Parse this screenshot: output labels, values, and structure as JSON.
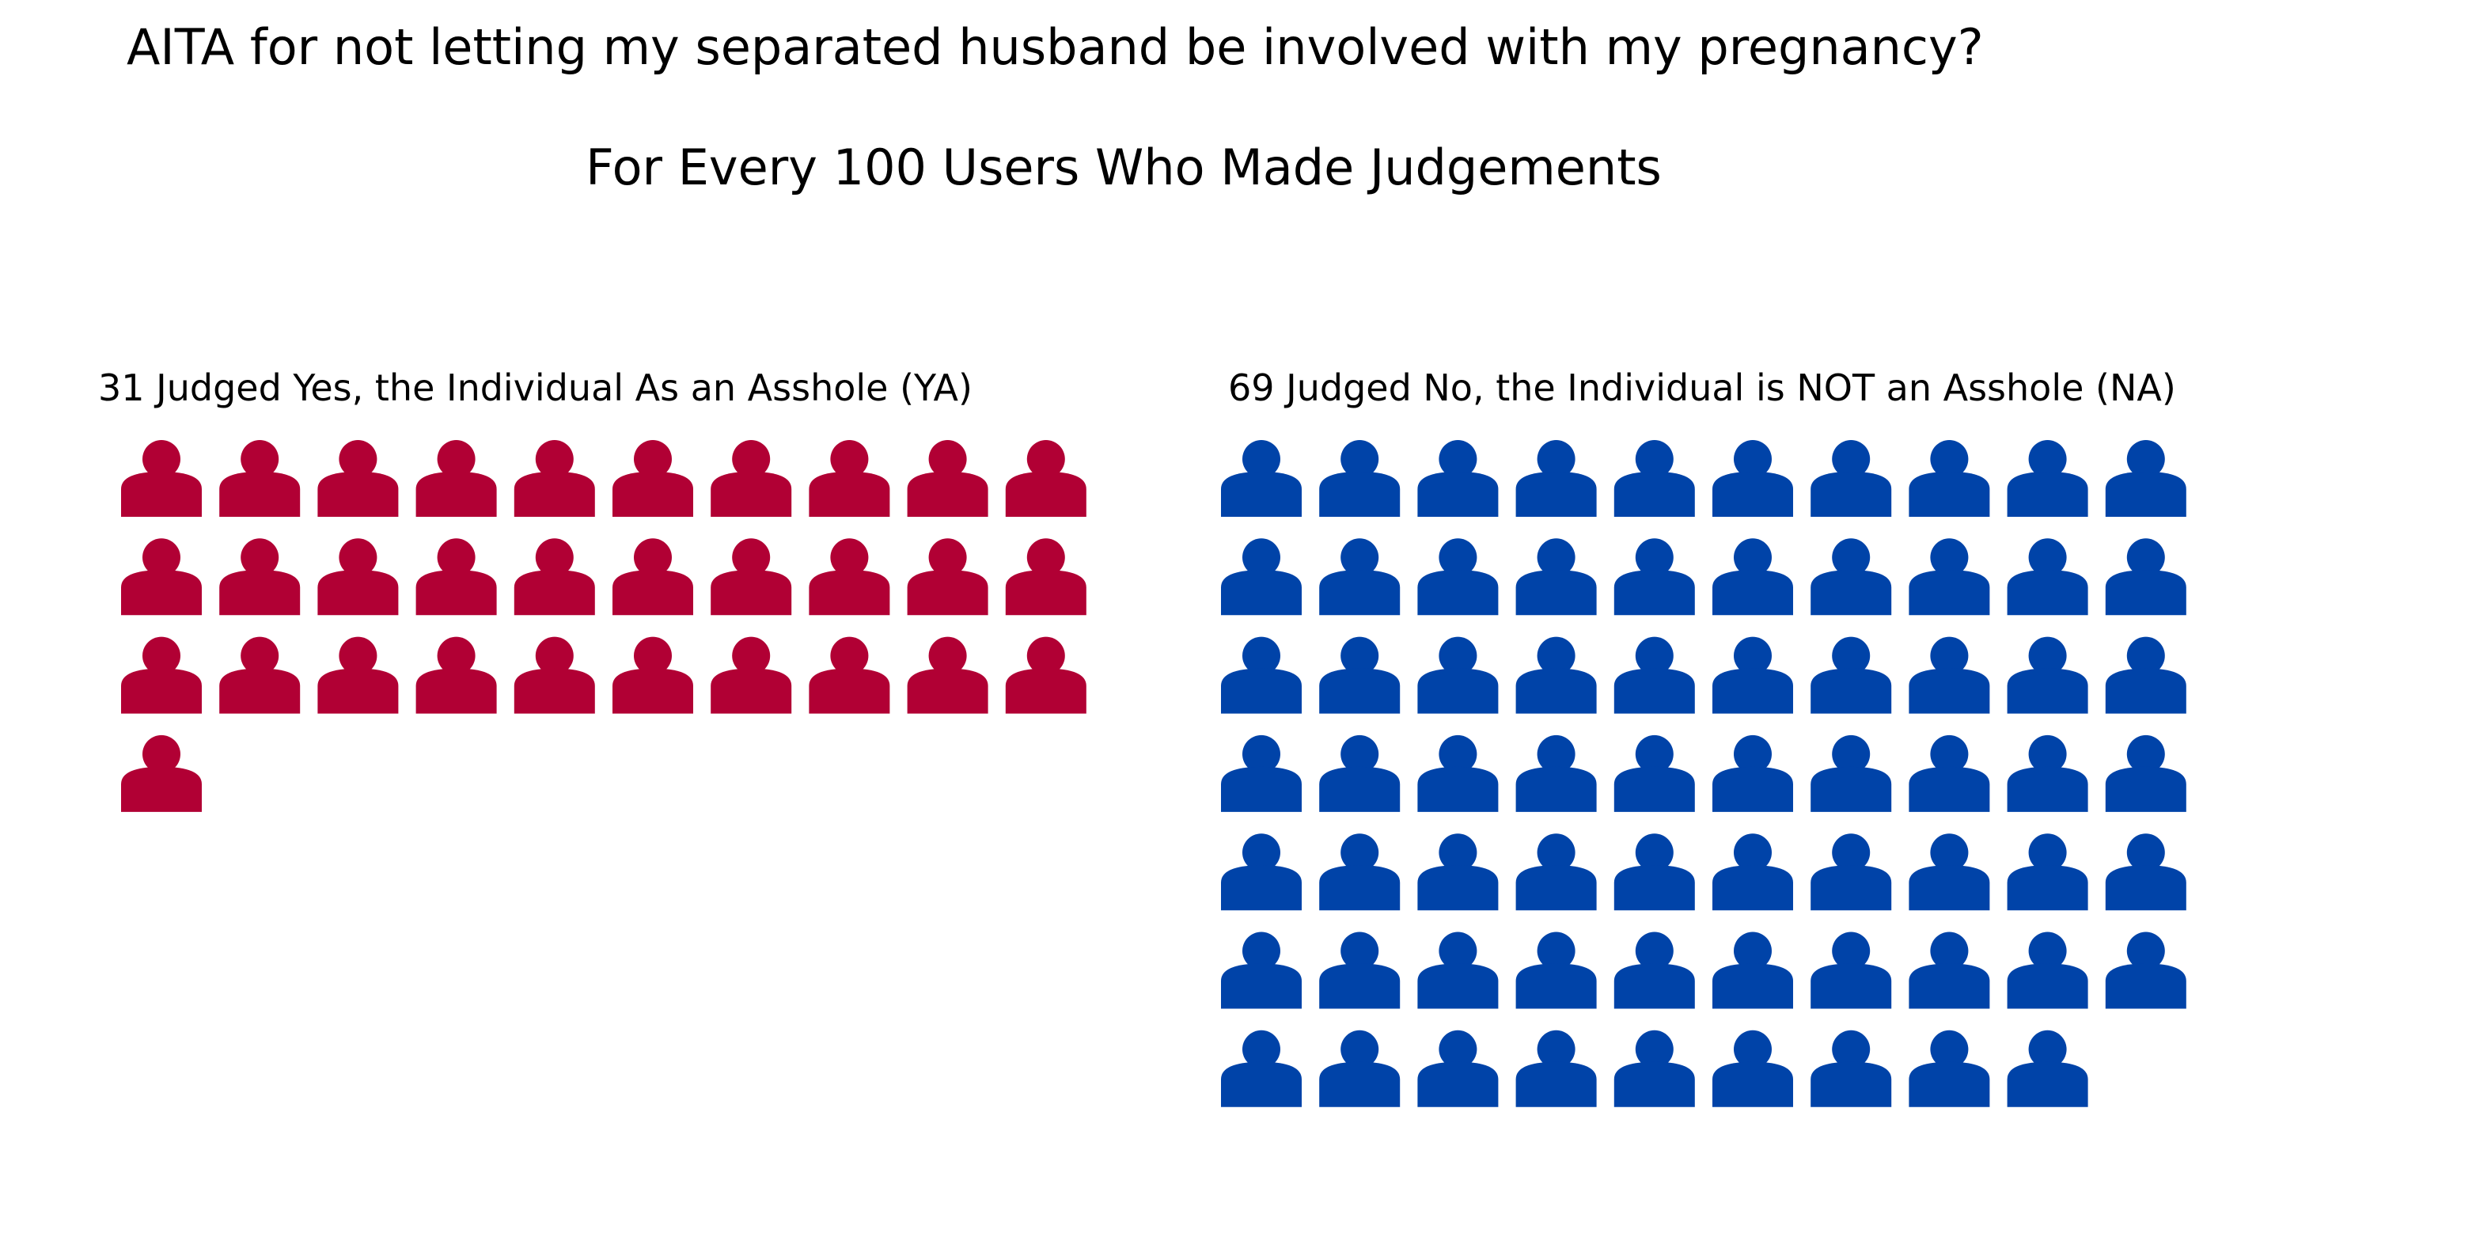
{
  "chart_data": {
    "type": "pictogram",
    "title": "AITA for not letting my separated husband be involved with my pregnancy?",
    "subtitle": "For Every 100 Users Who Made Judgements",
    "icon": "person-icon",
    "icons_per_row": 10,
    "series": [
      {
        "label": "31 Judged Yes, the Individual As an Asshole (YA)",
        "value": 31,
        "color": "#b10034"
      },
      {
        "label": "69 Judged No, the Individual is NOT an Asshole (NA)",
        "value": 69,
        "color": "#0043a8"
      }
    ]
  }
}
